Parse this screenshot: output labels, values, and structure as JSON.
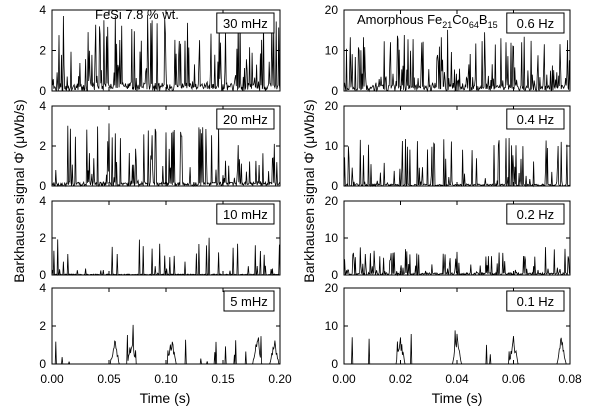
{
  "chart_data": [
    {
      "type": "line",
      "title": "FeSi 7.8 % wt.",
      "xlabel": "Time (s)",
      "ylabel": "Barkhausen signal Φ̇ (μWb/s)",
      "xlim": [
        0,
        0.2
      ],
      "x_ticks": [
        "0.00",
        "0.05",
        "0.10",
        "0.15",
        "0.20"
      ],
      "grid": false,
      "panels": [
        {
          "label": "30 mHz",
          "ylim": [
            0,
            4
          ],
          "y_ticks": [
            "0",
            "2",
            "4"
          ],
          "seed": 11,
          "density": 0.85,
          "amp": 3.5,
          "base": 0.4,
          "bursts": []
        },
        {
          "label": "20 mHz",
          "ylim": [
            0,
            4
          ],
          "y_ticks": [
            "0",
            "2",
            "4"
          ],
          "seed": 23,
          "density": 0.6,
          "amp": 3.0,
          "base": 0.2,
          "bursts": []
        },
        {
          "label": "10 mHz",
          "ylim": [
            0,
            4
          ],
          "y_ticks": [
            "0",
            "2",
            "4"
          ],
          "seed": 37,
          "density": 0.35,
          "amp": 2.0,
          "base": 0.05,
          "bursts": []
        },
        {
          "label": "5 mHz",
          "ylim": [
            0,
            4
          ],
          "y_ticks": [
            "0",
            "2",
            "4"
          ],
          "seed": 41,
          "density": 0.12,
          "amp": 1.5,
          "base": 0.0,
          "bursts": [
            0.055,
            0.07,
            0.105,
            0.18,
            0.195
          ]
        }
      ]
    },
    {
      "type": "line",
      "title_parts": [
        {
          "text": "Amorphous Fe",
          "sub": false
        },
        {
          "text": "21",
          "sub": true
        },
        {
          "text": "Co",
          "sub": false
        },
        {
          "text": "64",
          "sub": true
        },
        {
          "text": "B",
          "sub": false
        },
        {
          "text": "15",
          "sub": true
        }
      ],
      "xlabel": "Time (s)",
      "ylabel": "Barkhausen signal Φ̇ (μWb/s)",
      "xlim": [
        0,
        0.08
      ],
      "x_ticks": [
        "0.00",
        "0.02",
        "0.04",
        "0.06",
        "0.08"
      ],
      "grid": false,
      "panels": [
        {
          "label": "0.6 Hz",
          "ylim": [
            0,
            20
          ],
          "y_ticks": [
            "0",
            "10",
            "20"
          ],
          "seed": 53,
          "density": 0.9,
          "amp": 14.0,
          "base": 1.5,
          "bursts": []
        },
        {
          "label": "0.4 Hz",
          "ylim": [
            0,
            20
          ],
          "y_ticks": [
            "0",
            "10",
            "20"
          ],
          "seed": 67,
          "density": 0.55,
          "amp": 12.0,
          "base": 0.5,
          "bursts": []
        },
        {
          "label": "0.2 Hz",
          "ylim": [
            0,
            20
          ],
          "y_ticks": [
            "0",
            "10",
            "20"
          ],
          "seed": 79,
          "density": 0.7,
          "amp": 7.0,
          "base": 0.6,
          "bursts": []
        },
        {
          "label": "0.1 Hz",
          "ylim": [
            0,
            20
          ],
          "y_ticks": [
            "0",
            "10",
            "20"
          ],
          "seed": 83,
          "density": 0.08,
          "amp": 8.0,
          "base": 0.0,
          "bursts": [
            0.02,
            0.04,
            0.06,
            0.077
          ]
        }
      ]
    }
  ]
}
